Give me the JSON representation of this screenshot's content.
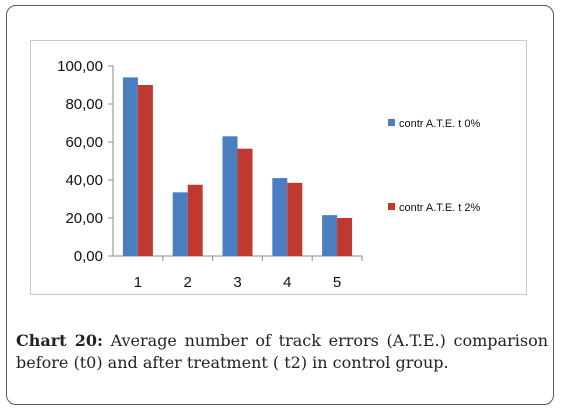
{
  "chart_data": {
    "type": "bar",
    "categories": [
      "1",
      "2",
      "3",
      "4",
      "5"
    ],
    "series": [
      {
        "name": "contr A.T.E.  t 0%",
        "values": [
          94.0,
          33.5,
          63.0,
          41.0,
          21.5
        ],
        "color": "#4A7EC0"
      },
      {
        "name": "contr A.T.E. t 2%",
        "values": [
          90.0,
          37.5,
          56.5,
          38.5,
          20.0
        ],
        "color": "#C0392F"
      }
    ],
    "ylim": [
      0,
      100
    ],
    "yticks": [
      "0,00",
      "20,00",
      "40,00",
      "60,00",
      "80,00",
      "100,00"
    ],
    "legend_placement": "right",
    "grid": false
  },
  "caption": {
    "lead": "Chart 20:",
    "text": " Average number of track errors (A.T.E.) comparison before (t0) and after treatment ( t2) in control group."
  }
}
